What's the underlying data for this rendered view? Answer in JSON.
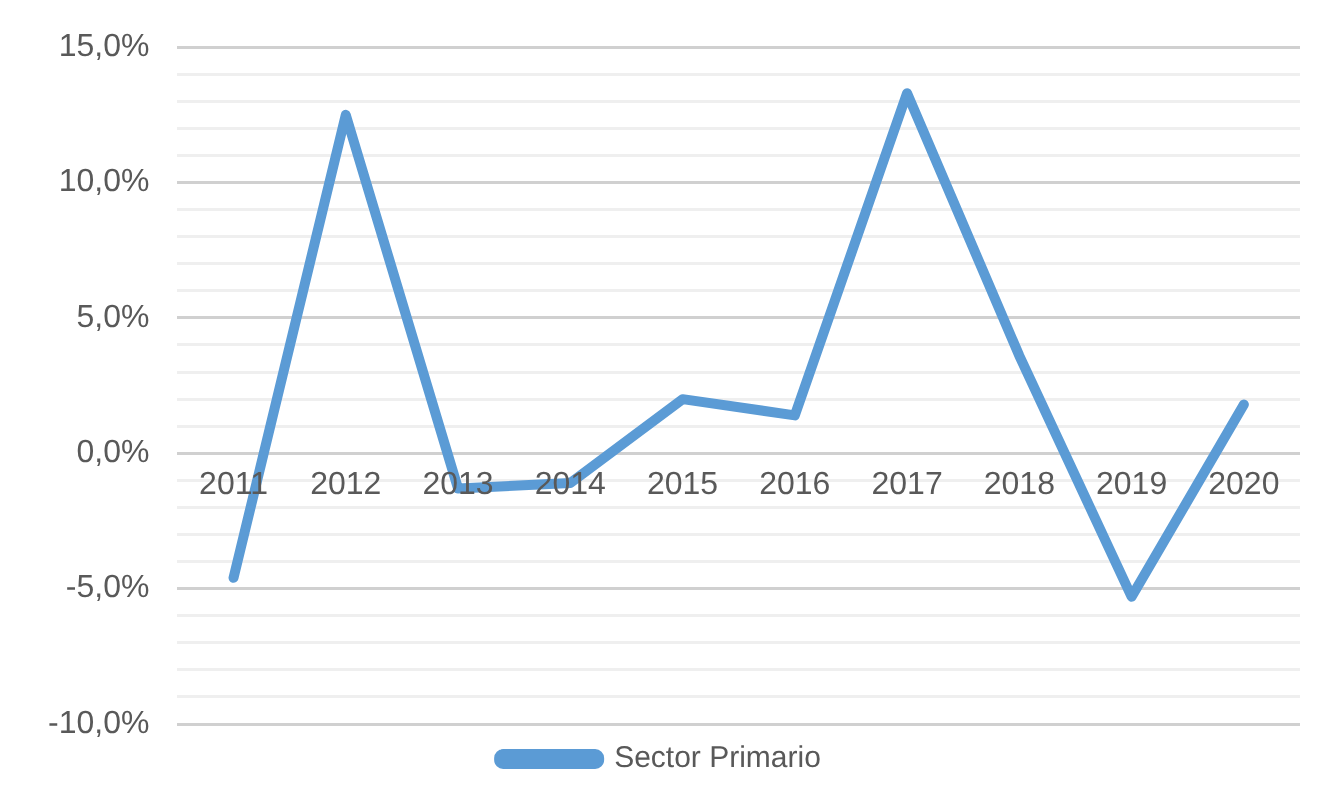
{
  "chart_data": {
    "type": "line",
    "categories": [
      "2011",
      "2012",
      "2013",
      "2014",
      "2015",
      "2016",
      "2017",
      "2018",
      "2019",
      "2020"
    ],
    "series": [
      {
        "name": "Sector Primario",
        "color": "#5b9bd5",
        "values": [
          -4.6,
          12.5,
          -1.3,
          -1.1,
          2.0,
          1.4,
          13.3,
          3.6,
          -5.3,
          1.8
        ]
      }
    ],
    "ylim": [
      -10,
      15
    ],
    "yticks": [
      {
        "value": -10,
        "label": "-10,0%"
      },
      {
        "value": -9,
        "label": null
      },
      {
        "value": -8,
        "label": null
      },
      {
        "value": -7,
        "label": null
      },
      {
        "value": -6,
        "label": null
      },
      {
        "value": -5,
        "label": "-5,0%"
      },
      {
        "value": -4,
        "label": null
      },
      {
        "value": -3,
        "label": null
      },
      {
        "value": -2,
        "label": null
      },
      {
        "value": -1,
        "label": null
      },
      {
        "value": 0,
        "label": "0,0%"
      },
      {
        "value": 1,
        "label": null
      },
      {
        "value": 2,
        "label": null
      },
      {
        "value": 3,
        "label": null
      },
      {
        "value": 4,
        "label": null
      },
      {
        "value": 5,
        "label": "5,0%"
      },
      {
        "value": 6,
        "label": null
      },
      {
        "value": 7,
        "label": null
      },
      {
        "value": 8,
        "label": null
      },
      {
        "value": 9,
        "label": null
      },
      {
        "value": 10,
        "label": "10,0%"
      },
      {
        "value": 11,
        "label": null
      },
      {
        "value": 12,
        "label": null
      },
      {
        "value": 13,
        "label": null
      },
      {
        "value": 14,
        "label": null
      },
      {
        "value": 15,
        "label": "15,0%"
      }
    ],
    "grid": "y",
    "legend": "bottom",
    "marker": "none",
    "line_style": "solid"
  }
}
